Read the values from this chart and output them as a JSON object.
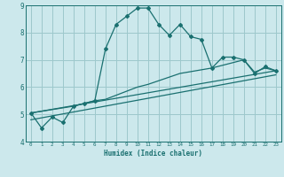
{
  "xlabel": "Humidex (Indice chaleur)",
  "bg_color": "#cce8ec",
  "grid_color": "#9dc8cc",
  "line_color": "#1a7070",
  "xlim": [
    -0.5,
    23.5
  ],
  "ylim": [
    4,
    9
  ],
  "xticks": [
    0,
    1,
    2,
    3,
    4,
    5,
    6,
    7,
    8,
    9,
    10,
    11,
    12,
    13,
    14,
    15,
    16,
    17,
    18,
    19,
    20,
    21,
    22,
    23
  ],
  "yticks": [
    4,
    5,
    6,
    7,
    8,
    9
  ],
  "series1_x": [
    0,
    1,
    2,
    3,
    4,
    5,
    6,
    7,
    8,
    9,
    10,
    11,
    12,
    13,
    14,
    15,
    16,
    17,
    18,
    19,
    20,
    21,
    22,
    23
  ],
  "series1_y": [
    5.05,
    4.5,
    4.9,
    4.7,
    5.3,
    5.4,
    5.5,
    7.4,
    8.3,
    8.6,
    8.9,
    8.9,
    8.3,
    7.9,
    8.3,
    7.85,
    7.75,
    6.7,
    7.1,
    7.1,
    7.0,
    6.5,
    6.75,
    6.6
  ],
  "series2_x": [
    0,
    4,
    5,
    6,
    7,
    10,
    11,
    14,
    17,
    18,
    19,
    20,
    21,
    22,
    23
  ],
  "series2_y": [
    5.05,
    5.3,
    5.4,
    5.5,
    5.55,
    6.0,
    6.1,
    6.5,
    6.7,
    6.8,
    6.9,
    7.0,
    6.55,
    6.7,
    6.6
  ],
  "series3_x": [
    0,
    23
  ],
  "series3_y": [
    5.05,
    6.6
  ],
  "series4_x": [
    0,
    23
  ],
  "series4_y": [
    4.8,
    6.45
  ]
}
